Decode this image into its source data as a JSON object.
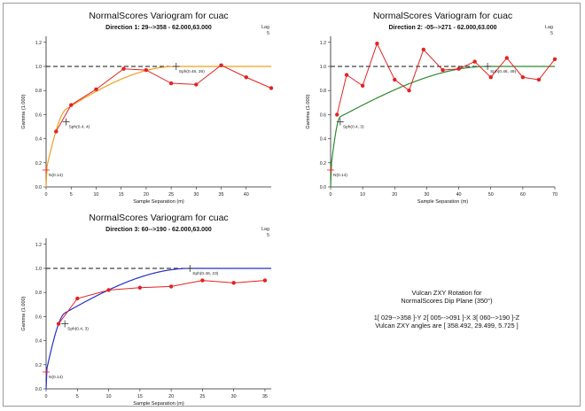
{
  "chart_data": [
    {
      "type": "line",
      "title": "NormalScores  Variogram for cuac",
      "subtitle": "Direction 1: 29-->358 - 62.000,63.000",
      "xlabel": "Sample Separation (m)",
      "ylabel": "Gamma (1.000)",
      "xlim": [
        0,
        45
      ],
      "ylim": [
        0,
        1.25
      ],
      "xticks": [
        "0",
        "5",
        "10",
        "15",
        "20",
        "25",
        "30",
        "35",
        "40"
      ],
      "yticks": [
        "0.0",
        "0.2",
        "0.4",
        "0.6",
        "0.8",
        "1.0",
        "1.2"
      ],
      "lag_label": "Lag",
      "lag_value": "5",
      "sill": 1.0,
      "model_color": "#f0a020",
      "experimental_color": "#e32222",
      "experimental": {
        "x": [
          2,
          5,
          10,
          15.5,
          20,
          25,
          30,
          35,
          40,
          45
        ],
        "y": [
          0.46,
          0.68,
          0.81,
          0.98,
          0.97,
          0.86,
          0.85,
          1.01,
          0.91,
          0.82
        ]
      },
      "model": {
        "nugget": 0.14,
        "structures": [
          {
            "sill": 0.4,
            "range": 4
          },
          {
            "sill": 0.46,
            "range": 26
          }
        ]
      },
      "annotations": [
        {
          "text": "N(0.14)",
          "x": 0,
          "y": 0.14
        },
        {
          "text": "Sph(0.4, 4)",
          "x": 4,
          "y": 0.54
        },
        {
          "text": "Sph(0.46, 26)",
          "x": 26,
          "y": 1.0
        }
      ]
    },
    {
      "type": "line",
      "title": "NormalScores  Variogram for cuac",
      "subtitle": "Direction 2: -05-->271 - 62.000,63.000",
      "xlabel": "Sample Separation (m)",
      "ylabel": "Gamma (1.000)",
      "xlim": [
        0,
        70
      ],
      "ylim": [
        0,
        1.25
      ],
      "xticks": [
        "0",
        "10",
        "20",
        "30",
        "40",
        "50",
        "60",
        "70"
      ],
      "yticks": [
        "0.0",
        "0.2",
        "0.4",
        "0.6",
        "0.8",
        "1.0",
        "1.2"
      ],
      "lag_label": "Lag",
      "lag_value": "5",
      "sill": 1.0,
      "model_color": "#2f8a2f",
      "experimental_color": "#e32222",
      "experimental": {
        "x": [
          2,
          5,
          10,
          14.5,
          20,
          24.5,
          29,
          35,
          40,
          45,
          50,
          55,
          60,
          65,
          70
        ],
        "y": [
          0.6,
          0.93,
          0.84,
          1.19,
          0.89,
          0.8,
          1.14,
          0.97,
          0.98,
          1.04,
          0.91,
          1.07,
          0.91,
          0.89,
          1.06
        ]
      },
      "model": {
        "nugget": 0.14,
        "structures": [
          {
            "sill": 0.4,
            "range": 3
          },
          {
            "sill": 0.46,
            "range": 49
          }
        ]
      },
      "annotations": [
        {
          "text": "N(0.14)",
          "x": 0,
          "y": 0.14
        },
        {
          "text": "Sph(0.4, 3)",
          "x": 3,
          "y": 0.54
        },
        {
          "text": "Sph(0.46, 49)",
          "x": 49,
          "y": 1.0
        }
      ]
    },
    {
      "type": "line",
      "title": "NormalScores  Variogram for cuac",
      "subtitle": "Direction 3: 60-->190 - 62.000,63.000",
      "xlabel": "Sample Separation (m)",
      "ylabel": "Gamma (1.000)",
      "xlim": [
        0,
        36
      ],
      "ylim": [
        0,
        1.25
      ],
      "xticks": [
        "0",
        "5",
        "10",
        "15",
        "20",
        "25",
        "30",
        "35"
      ],
      "yticks": [
        "0.0",
        "0.2",
        "0.4",
        "0.6",
        "0.8",
        "1.0",
        "1.2"
      ],
      "lag_label": "Lag",
      "lag_value": "5",
      "sill": 1.0,
      "model_color": "#2431c9",
      "experimental_color": "#e32222",
      "experimental": {
        "x": [
          2,
          5,
          10,
          15,
          20,
          25,
          30,
          35
        ],
        "y": [
          0.54,
          0.75,
          0.82,
          0.84,
          0.85,
          0.9,
          0.88,
          0.9
        ]
      },
      "model": {
        "nugget": 0.14,
        "structures": [
          {
            "sill": 0.4,
            "range": 3
          },
          {
            "sill": 0.46,
            "range": 23
          }
        ]
      },
      "annotations": [
        {
          "text": "N(0.14)",
          "x": 0,
          "y": 0.14
        },
        {
          "text": "Sph(0.4, 3)",
          "x": 3,
          "y": 0.54
        },
        {
          "text": "Sph(0.46, 23)",
          "x": 23,
          "y": 1.0
        }
      ]
    }
  ],
  "rotation_note": {
    "line1": "Vulcan ZXY Rotation for",
    "line2": "NormalScores Dip Plane (350°)",
    "line3": "1[ 029-->358 ]-Y   2[ 005-->091 ]-X   3[ 060-->190 ]-Z",
    "line4": "Vulcan ZXY angles are [ 358.492, 29.499, 5.725 ]"
  }
}
